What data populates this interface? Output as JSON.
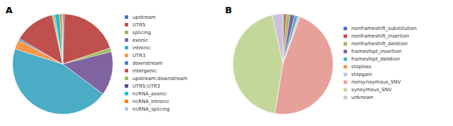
{
  "chart_data": [
    {
      "type": "pie",
      "title": "A",
      "categories": [
        "upstream",
        "UTR5",
        "splicing",
        "exonic",
        "intronic",
        "UTR3",
        "downstream",
        "intergenic",
        "upstream;downstream",
        "UTR5;UTR3",
        "ncRNA_exonic",
        "ncRNA_intronic",
        "ncRNA_splicing"
      ],
      "values": [
        0.5,
        19,
        1.2,
        14,
        44,
        3.0,
        0.5,
        13,
        0.5,
        0.3,
        1.5,
        0.8,
        0.2
      ],
      "colors": [
        "#4472C4",
        "#C0504D",
        "#9BBB59",
        "#8064A2",
        "#4BACC6",
        "#F79646",
        "#4F81BD",
        "#C0504D",
        "#9BBB59",
        "#604A7B",
        "#17BECF",
        "#FF7F0E",
        "#AEC7E8"
      ],
      "legend": "right"
    },
    {
      "type": "pie",
      "title": "B",
      "categories": [
        "nonframeshift_substitution",
        "nonframeshift_insertion",
        "nonframeshift_deletion",
        "frameshipt_insertion",
        "frameshipt_deletion",
        "stoploss",
        "stopgain",
        "nonsynoymous_SNV",
        "synoymous_SNV",
        "unknown"
      ],
      "values": [
        0.3,
        0.8,
        1.2,
        1.5,
        1.0,
        0.3,
        0.5,
        47,
        44,
        3.4
      ],
      "colors": [
        "#4472C4",
        "#C0504D",
        "#9BBB59",
        "#8064A2",
        "#4BACC6",
        "#F79646",
        "#AEC7E8",
        "#E8A09A",
        "#C4D79B",
        "#CCC1DA"
      ],
      "legend": "right"
    }
  ]
}
